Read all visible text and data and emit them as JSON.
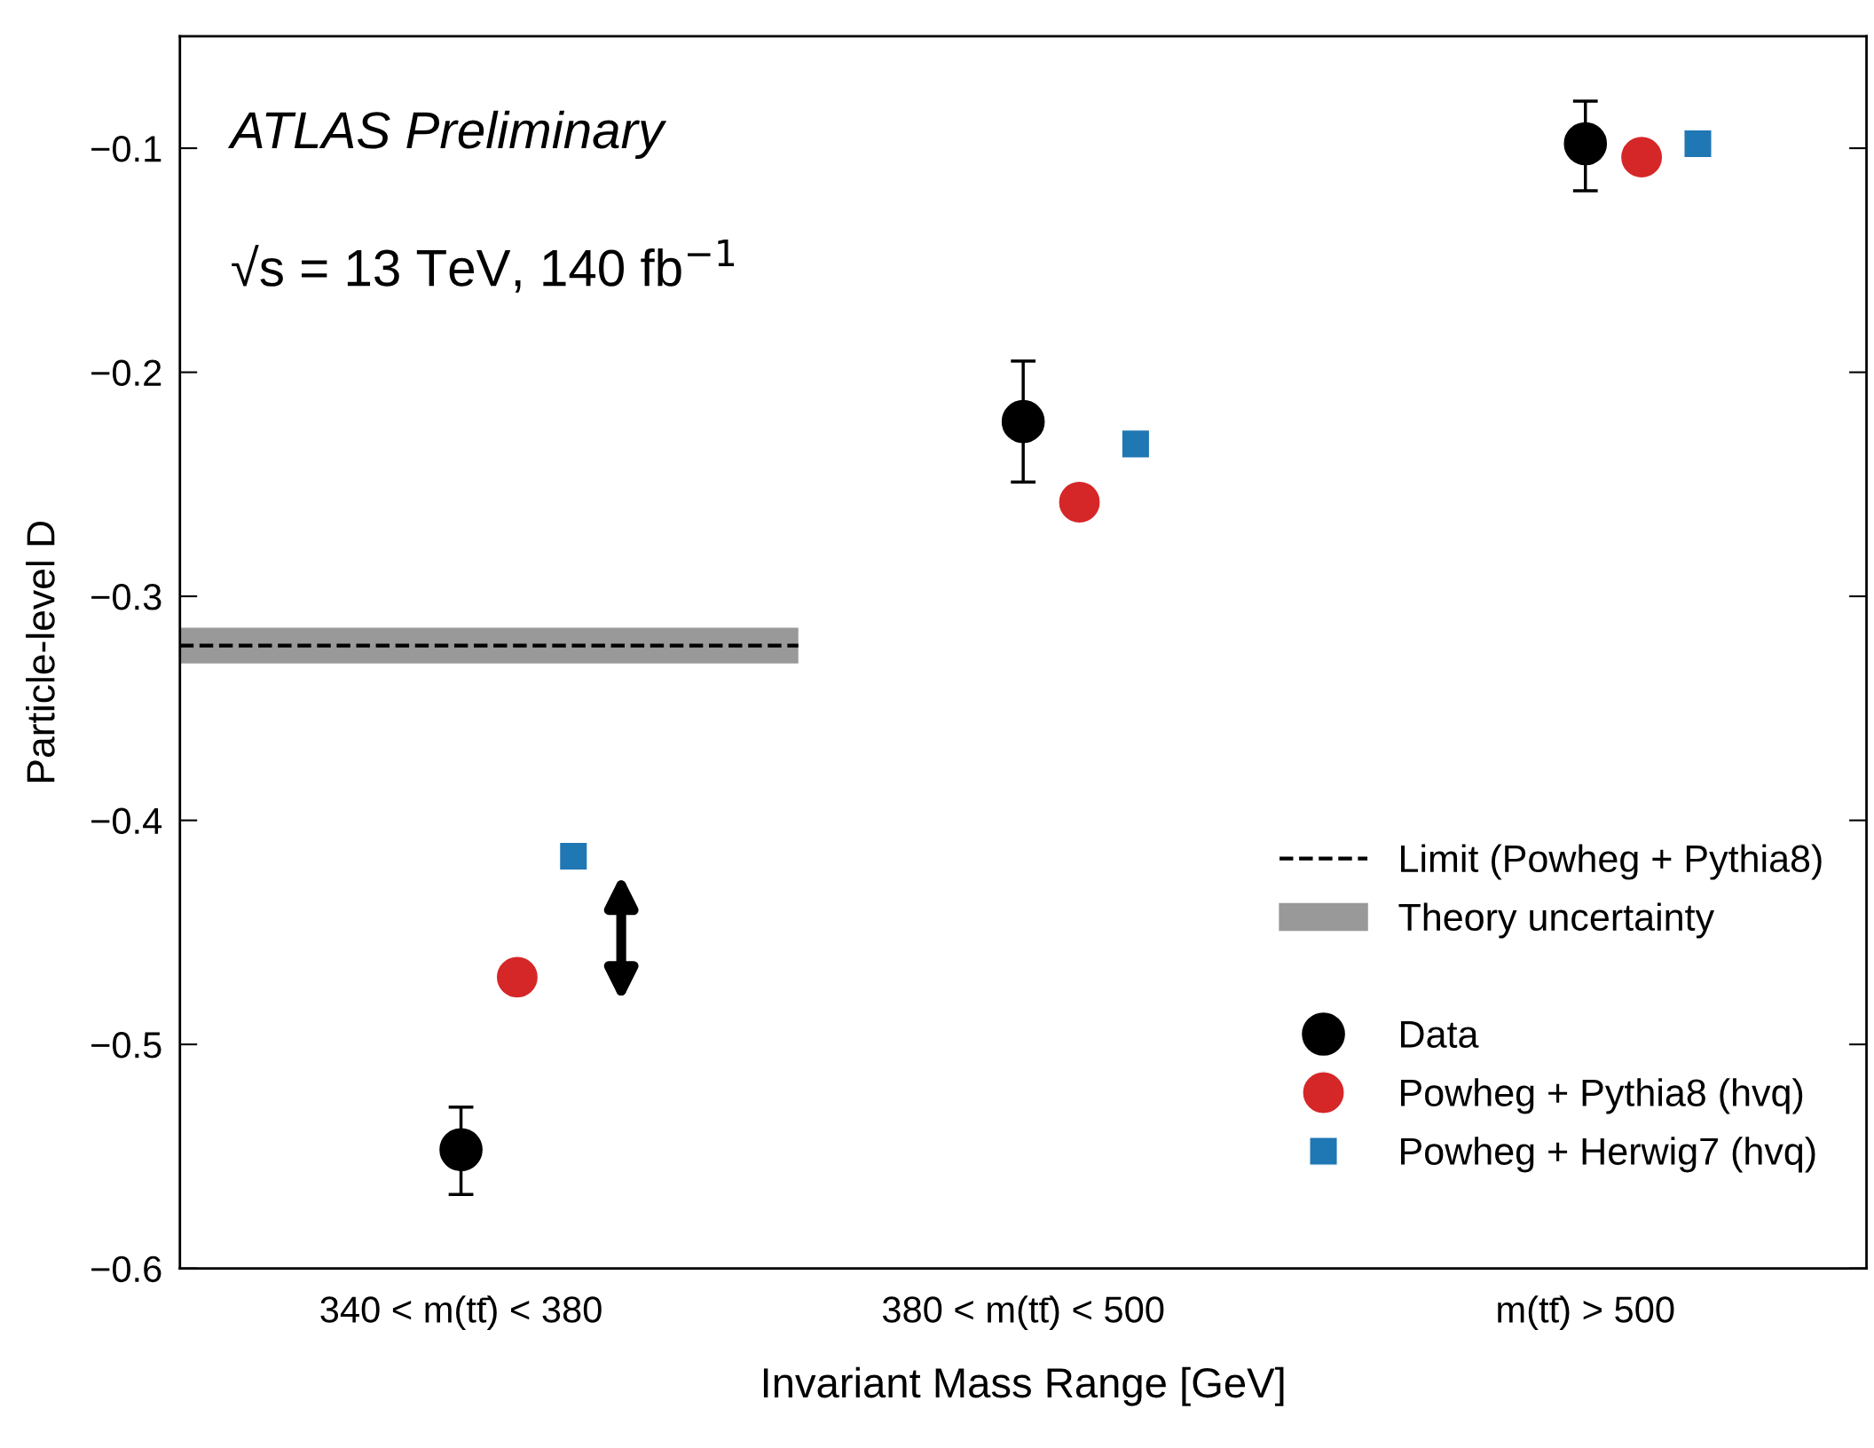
{
  "chart_data": {
    "type": "scatter",
    "xlabel": "Invariant Mass Range [GeV]",
    "ylabel": "Particle-level D",
    "categories": [
      "340 < m(tt̄) < 380",
      "380 < m(tt̄) < 500",
      "m(tt̄) > 500"
    ],
    "series": [
      {
        "name": "Data",
        "color": "#000000",
        "marker": "circle",
        "values": [
          -0.547,
          -0.222,
          -0.098
        ],
        "errors": [
          [
            -0.567,
            -0.528
          ],
          [
            -0.249,
            -0.195
          ],
          [
            -0.119,
            -0.079
          ]
        ]
      },
      {
        "name": "Powheg + Pythia8 (hvq)",
        "color": "#d62728",
        "marker": "circle",
        "values": [
          -0.47,
          -0.258,
          -0.104
        ]
      },
      {
        "name": "Powheg + Herwig7 (hvq)",
        "color": "#1f77b4",
        "marker": "square",
        "values": [
          -0.416,
          -0.232,
          -0.098
        ]
      }
    ],
    "ref_lines": [
      {
        "axis": "y",
        "value": -0.322,
        "label": "Limit (Powheg + Pythia8)",
        "color": "#000000",
        "line_style": "dashed"
      }
    ],
    "bands": [
      {
        "axis": "y",
        "from": -0.33,
        "to": -0.314,
        "label": "Theory uncertainty",
        "color": "#999999"
      }
    ],
    "ylim": [
      -0.6,
      -0.05
    ],
    "yticks": [
      {
        "value": -0.6,
        "label": "−0.6"
      },
      {
        "value": -0.5,
        "label": "−0.5"
      },
      {
        "value": -0.4,
        "label": "−0.4"
      },
      {
        "value": -0.3,
        "label": "−0.3"
      },
      {
        "value": -0.2,
        "label": "−0.2"
      },
      {
        "value": -0.1,
        "label": "−0.1"
      }
    ],
    "annotations": [
      "ATLAS Preliminary",
      "√s = 13 TeV, 140 fb$^{−1}$"
    ],
    "legend": "bottom right",
    "grid": false
  }
}
